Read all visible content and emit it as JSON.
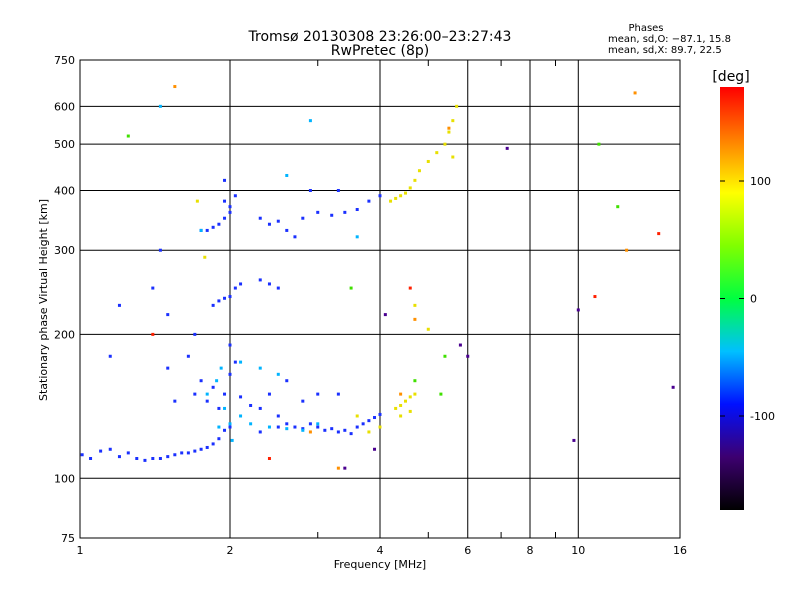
{
  "chart_data": {
    "type": "scatter",
    "title": "Tromsø 20130308 23:26:00–23:27:43",
    "subtitle": "RwPretec (8p)",
    "xlabel": "Frequency [MHz]",
    "ylabel": "Stationary phase Virtual Height [km]",
    "x_scale": "log",
    "y_scale": "log",
    "xlim": [
      1,
      16
    ],
    "ylim": [
      75,
      750
    ],
    "x_ticks": [
      1,
      2,
      4,
      6,
      8,
      10,
      16
    ],
    "x_minor_ticks": [
      3,
      5,
      7,
      9
    ],
    "y_ticks": [
      75,
      100,
      200,
      300,
      400,
      500,
      600,
      750
    ],
    "grid": true,
    "phase_box": {
      "title": "Phases",
      "line1": "mean, sd,O: −87.1, 15.8",
      "line2": "mean, sd,X: 89.7, 22.5"
    },
    "colorbar": {
      "label": "[deg]",
      "range": [
        -180,
        180
      ],
      "ticks": [
        100,
        0,
        -100
      ],
      "colors": [
        "#000000",
        "#3d0070",
        "#0010ff",
        "#00c0ff",
        "#00ff40",
        "#80ff00",
        "#ffff00",
        "#ff8000",
        "#ff0000"
      ]
    },
    "series": [
      {
        "color": "#1a30ff",
        "points": [
          [
            1.01,
            112
          ],
          [
            1.05,
            110
          ],
          [
            1.1,
            114
          ],
          [
            1.15,
            115
          ],
          [
            1.2,
            111
          ],
          [
            1.25,
            113
          ],
          [
            1.3,
            110
          ],
          [
            1.35,
            109
          ],
          [
            1.4,
            110
          ],
          [
            1.45,
            110
          ],
          [
            1.5,
            111
          ],
          [
            1.55,
            112
          ],
          [
            1.6,
            113
          ],
          [
            1.65,
            113
          ],
          [
            1.7,
            114
          ],
          [
            1.75,
            115
          ],
          [
            1.8,
            116
          ],
          [
            1.85,
            118
          ],
          [
            1.9,
            121
          ],
          [
            1.95,
            126
          ],
          [
            2.0,
            128
          ],
          [
            1.9,
            140
          ],
          [
            1.95,
            150
          ],
          [
            2.0,
            165
          ],
          [
            2.05,
            175
          ],
          [
            1.85,
            155
          ],
          [
            1.75,
            160
          ],
          [
            1.7,
            150
          ],
          [
            1.8,
            145
          ],
          [
            2.1,
            148
          ],
          [
            2.2,
            142
          ],
          [
            2.3,
            140
          ],
          [
            2.4,
            150
          ],
          [
            2.5,
            135
          ],
          [
            2.6,
            130
          ],
          [
            2.7,
            128
          ],
          [
            2.8,
            127
          ],
          [
            2.9,
            130
          ],
          [
            3.0,
            128
          ],
          [
            3.1,
            126
          ],
          [
            3.2,
            127
          ],
          [
            3.3,
            125
          ],
          [
            3.4,
            126
          ],
          [
            3.5,
            124
          ],
          [
            3.6,
            128
          ],
          [
            3.7,
            130
          ],
          [
            3.8,
            132
          ],
          [
            3.9,
            134
          ],
          [
            4.0,
            136
          ],
          [
            2.3,
            125
          ],
          [
            2.5,
            128
          ],
          [
            2.6,
            160
          ],
          [
            2.8,
            145
          ],
          [
            3.0,
            150
          ],
          [
            3.3,
            150
          ],
          [
            1.55,
            145
          ],
          [
            1.65,
            180
          ],
          [
            1.7,
            200
          ],
          [
            1.5,
            170
          ],
          [
            2.0,
            190
          ],
          [
            1.9,
            235
          ],
          [
            1.95,
            238
          ],
          [
            2.0,
            240
          ],
          [
            2.05,
            250
          ],
          [
            2.1,
            255
          ],
          [
            1.85,
            230
          ],
          [
            2.3,
            260
          ],
          [
            2.4,
            255
          ],
          [
            2.5,
            250
          ],
          [
            1.75,
            330
          ],
          [
            1.8,
            330
          ],
          [
            1.85,
            335
          ],
          [
            1.9,
            340
          ],
          [
            1.95,
            350
          ],
          [
            2.0,
            360
          ],
          [
            2.05,
            390
          ],
          [
            1.95,
            420
          ],
          [
            1.95,
            380
          ],
          [
            2.0,
            370
          ],
          [
            2.3,
            350
          ],
          [
            2.4,
            340
          ],
          [
            2.5,
            345
          ],
          [
            2.6,
            330
          ],
          [
            2.7,
            320
          ],
          [
            2.8,
            350
          ],
          [
            3.0,
            360
          ],
          [
            3.2,
            355
          ],
          [
            3.4,
            360
          ],
          [
            3.6,
            365
          ],
          [
            3.8,
            380
          ],
          [
            4.0,
            390
          ],
          [
            2.9,
            400
          ],
          [
            3.3,
            400
          ],
          [
            1.4,
            250
          ],
          [
            1.5,
            220
          ],
          [
            1.45,
            300
          ],
          [
            1.2,
            230
          ],
          [
            1.15,
            180
          ]
        ]
      },
      {
        "color": "#00b4ff",
        "points": [
          [
            1.88,
            160
          ],
          [
            1.92,
            170
          ],
          [
            1.95,
            140
          ],
          [
            2.0,
            130
          ],
          [
            2.02,
            120
          ],
          [
            1.9,
            128
          ],
          [
            2.1,
            135
          ],
          [
            2.2,
            130
          ],
          [
            2.4,
            128
          ],
          [
            2.6,
            127
          ],
          [
            2.8,
            126
          ],
          [
            3.0,
            130
          ],
          [
            2.1,
            175
          ],
          [
            2.3,
            170
          ],
          [
            2.5,
            165
          ],
          [
            1.8,
            150
          ],
          [
            1.75,
            330
          ],
          [
            3.6,
            320
          ],
          [
            2.6,
            430
          ],
          [
            2.9,
            560
          ],
          [
            1.45,
            600
          ]
        ]
      },
      {
        "color": "#e8e000",
        "points": [
          [
            4.3,
            140
          ],
          [
            4.4,
            142
          ],
          [
            4.5,
            145
          ],
          [
            4.6,
            148
          ],
          [
            4.7,
            150
          ],
          [
            4.4,
            135
          ],
          [
            4.6,
            138
          ],
          [
            4.2,
            380
          ],
          [
            4.3,
            385
          ],
          [
            4.4,
            390
          ],
          [
            4.5,
            395
          ],
          [
            4.6,
            405
          ],
          [
            4.7,
            420
          ],
          [
            4.8,
            440
          ],
          [
            5.0,
            460
          ],
          [
            5.2,
            480
          ],
          [
            5.4,
            500
          ],
          [
            5.5,
            530
          ],
          [
            5.6,
            560
          ],
          [
            5.7,
            600
          ],
          [
            5.6,
            470
          ],
          [
            3.8,
            125
          ],
          [
            4.0,
            128
          ],
          [
            3.6,
            135
          ],
          [
            4.7,
            230
          ],
          [
            5.0,
            205
          ],
          [
            1.78,
            290
          ],
          [
            1.72,
            380
          ]
        ]
      },
      {
        "color": "#ff9000",
        "points": [
          [
            4.7,
            215
          ],
          [
            5.5,
            540
          ],
          [
            2.9,
            125
          ],
          [
            3.3,
            105
          ],
          [
            4.4,
            150
          ],
          [
            1.55,
            660
          ],
          [
            13,
            640
          ],
          [
            12.5,
            300
          ]
        ]
      },
      {
        "color": "#40e000",
        "points": [
          [
            1.25,
            520
          ],
          [
            4.7,
            160
          ],
          [
            5.4,
            180
          ],
          [
            11,
            500
          ],
          [
            12,
            370
          ],
          [
            3.5,
            250
          ],
          [
            5.3,
            150
          ]
        ]
      },
      {
        "color": "#ff2000",
        "points": [
          [
            14.5,
            325
          ],
          [
            10.8,
            240
          ],
          [
            1.4,
            200
          ],
          [
            4.6,
            250
          ],
          [
            2.4,
            110
          ]
        ]
      },
      {
        "color": "#4a0090",
        "points": [
          [
            3.4,
            105
          ],
          [
            3.9,
            115
          ],
          [
            9.8,
            120
          ],
          [
            15.5,
            155
          ],
          [
            10,
            225
          ],
          [
            7.2,
            490
          ],
          [
            4.1,
            220
          ],
          [
            6.0,
            180
          ],
          [
            5.8,
            190
          ]
        ]
      }
    ]
  }
}
